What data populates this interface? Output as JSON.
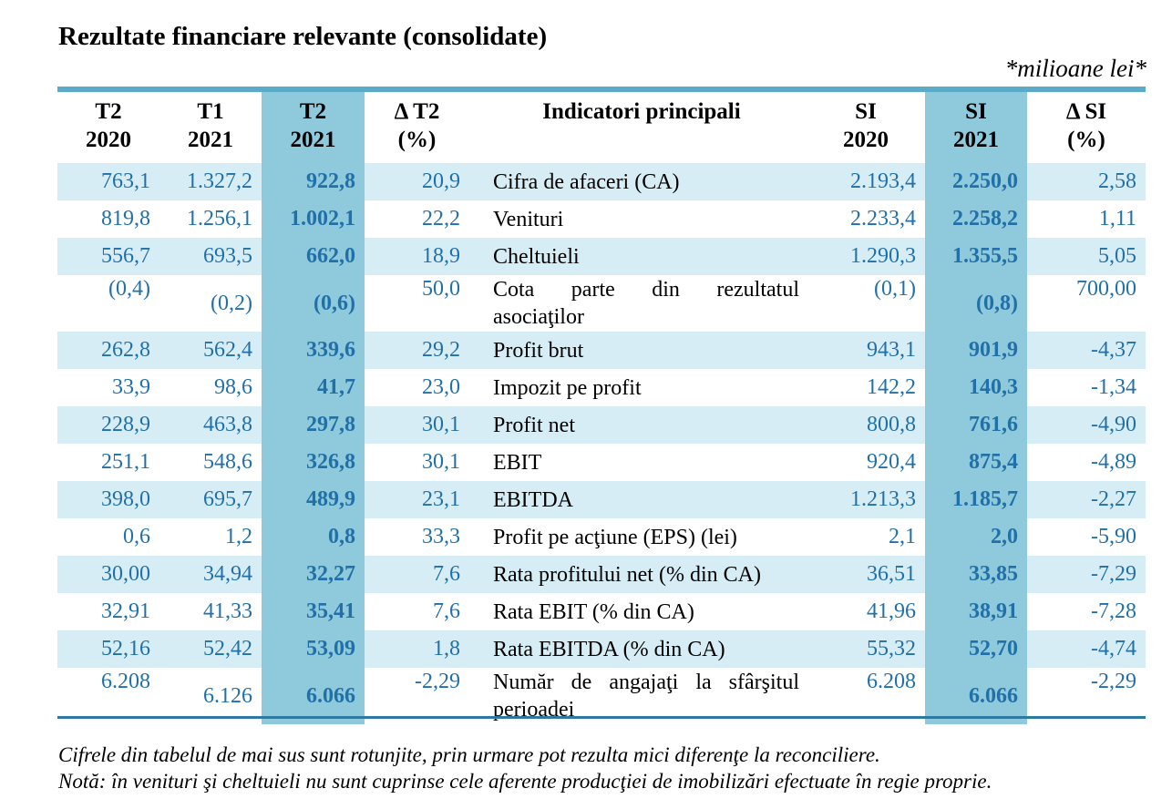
{
  "title": "Rezultate financiare relevante (consolidate)",
  "units": "*milioane lei*",
  "headers": [
    {
      "line1": "T2",
      "line2": "2020"
    },
    {
      "line1": "T1",
      "line2": "2021"
    },
    {
      "line1": "T2",
      "line2": "2021"
    },
    {
      "line1": "Δ T2",
      "line2": "(%)"
    },
    {
      "line1": "Indicatori principali",
      "line2": ""
    },
    {
      "line1": "SI",
      "line2": "2020"
    },
    {
      "line1": "SI",
      "line2": "2021"
    },
    {
      "line1": "Δ SI",
      "line2": "(%)"
    }
  ],
  "rows": [
    {
      "t2_2020": "763,1",
      "t1_2021": "1.327,2",
      "t2_2021": "922,8",
      "dt2": "20,9",
      "label": "Cifra de afaceri (CA)",
      "si_2020": "2.193,4",
      "si_2021": "2.250,0",
      "dsi": "2,58"
    },
    {
      "t2_2020": "819,8",
      "t1_2021": "1.256,1",
      "t2_2021": "1.002,1",
      "dt2": "22,2",
      "label": "Venituri",
      "si_2020": "2.233,4",
      "si_2021": "2.258,2",
      "dsi": "1,11"
    },
    {
      "t2_2020": "556,7",
      "t1_2021": "693,5",
      "t2_2021": "662,0",
      "dt2": "18,9",
      "label": "Cheltuieli",
      "si_2020": "1.290,3",
      "si_2021": "1.355,5",
      "dsi": "5,05"
    },
    {
      "t2_2020": "(0,4)",
      "t1_2021": "(0,2)",
      "t2_2021": "(0,6)",
      "dt2": "50,0",
      "label": "Cota parte din rezultatul asociaţilor",
      "si_2020": "(0,1)",
      "si_2021": "(0,8)",
      "dsi": "700,00"
    },
    {
      "t2_2020": "262,8",
      "t1_2021": "562,4",
      "t2_2021": "339,6",
      "dt2": "29,2",
      "label": "Profit brut",
      "si_2020": "943,1",
      "si_2021": "901,9",
      "dsi": "-4,37"
    },
    {
      "t2_2020": "33,9",
      "t1_2021": "98,6",
      "t2_2021": "41,7",
      "dt2": "23,0",
      "label": "Impozit pe profit",
      "si_2020": "142,2",
      "si_2021": "140,3",
      "dsi": "-1,34"
    },
    {
      "t2_2020": "228,9",
      "t1_2021": "463,8",
      "t2_2021": "297,8",
      "dt2": "30,1",
      "label": "Profit net",
      "si_2020": "800,8",
      "si_2021": "761,6",
      "dsi": "-4,90"
    },
    {
      "t2_2020": "251,1",
      "t1_2021": "548,6",
      "t2_2021": "326,8",
      "dt2": "30,1",
      "label": "EBIT",
      "si_2020": "920,4",
      "si_2021": "875,4",
      "dsi": "-4,89"
    },
    {
      "t2_2020": "398,0",
      "t1_2021": "695,7",
      "t2_2021": "489,9",
      "dt2": "23,1",
      "label": "EBITDA",
      "si_2020": "1.213,3",
      "si_2021": "1.185,7",
      "dsi": "-2,27"
    },
    {
      "t2_2020": "0,6",
      "t1_2021": "1,2",
      "t2_2021": "0,8",
      "dt2": "33,3",
      "label": "Profit pe acţiune (EPS) (lei)",
      "si_2020": "2,1",
      "si_2021": "2,0",
      "dsi": "-5,90"
    },
    {
      "t2_2020": "30,00",
      "t1_2021": "34,94",
      "t2_2021": "32,27",
      "dt2": "7,6",
      "label": "Rata profitului net (% din CA)",
      "si_2020": "36,51",
      "si_2021": "33,85",
      "dsi": "-7,29"
    },
    {
      "t2_2020": "32,91",
      "t1_2021": "41,33",
      "t2_2021": "35,41",
      "dt2": "7,6",
      "label": "Rata EBIT (% din CA)",
      "si_2020": "41,96",
      "si_2021": "38,91",
      "dsi": "-7,28"
    },
    {
      "t2_2020": "52,16",
      "t1_2021": "52,42",
      "t2_2021": "53,09",
      "dt2": "1,8",
      "label": "Rata EBITDA (% din CA)",
      "si_2020": "55,32",
      "si_2021": "52,70",
      "dsi": "-4,74"
    },
    {
      "t2_2020": "6.208",
      "t1_2021": "6.126",
      "t2_2021": "6.066",
      "dt2": "-2,29",
      "label": "Număr de angajaţi la sfârşitul perioadei",
      "si_2020": "6.208",
      "si_2021": "6.066",
      "dsi": "-2,29"
    }
  ],
  "notes": [
    "Cifrele din tabelul de mai sus sunt rotunjite, prin urmare pot rezulta mici diferenţe la reconciliere.",
    "Notă: în venituri şi cheltuieli nu sunt cuprinse cele aferente producţiei de imobilizări efectuate în regie proprie."
  ]
}
